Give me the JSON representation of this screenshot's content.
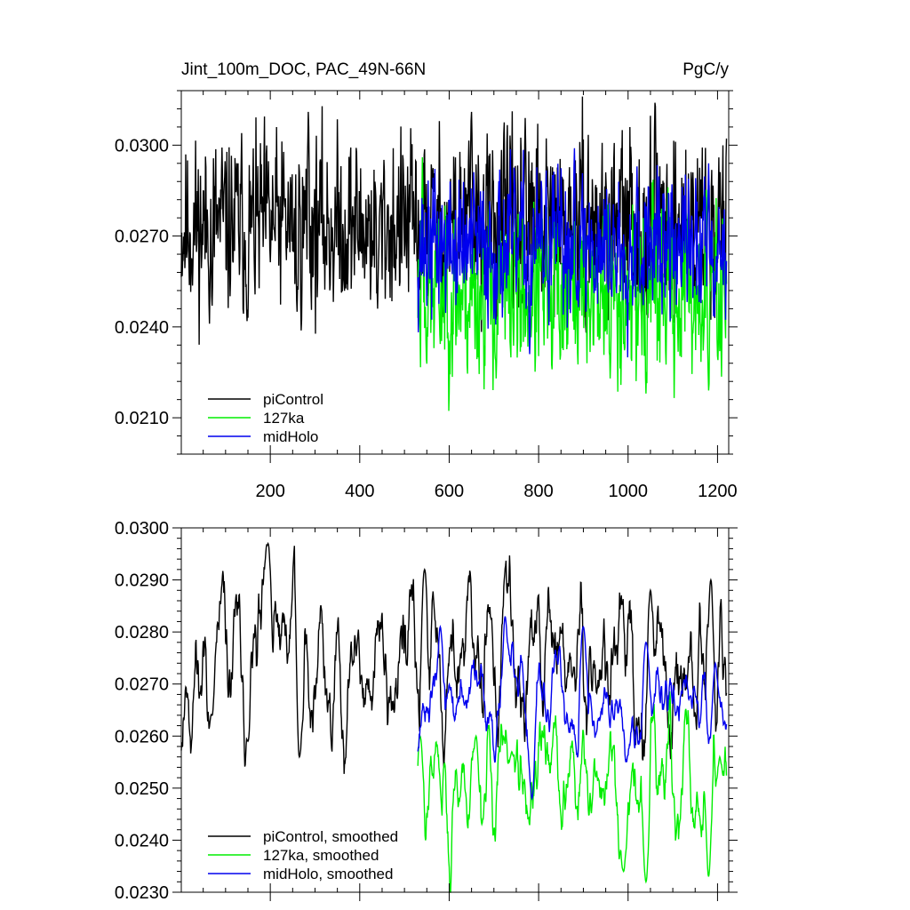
{
  "chart_data": [
    {
      "type": "line",
      "title": "Jint_100m_DOC, PAC_49N-66N",
      "units": "PgC/y",
      "xlim": [
        1,
        1225
      ],
      "ylim": [
        0.0198,
        0.0318
      ],
      "xticks": [
        200,
        400,
        600,
        800,
        1000,
        1200
      ],
      "xtick_labels": [
        "200",
        "400",
        "600",
        "800",
        "1000",
        "1200"
      ],
      "yticks": [
        0.021,
        0.024,
        0.027,
        0.03
      ],
      "ytick_labels": [
        "0.0210",
        "0.0240",
        "0.0270",
        "0.0300"
      ],
      "legend_position": "bottom-left",
      "series": [
        {
          "name": "piControl",
          "color": "#000000",
          "x_start": 1,
          "x_end": 1220,
          "y_mean": 0.0274,
          "y_amplitude": 0.0016,
          "smoothed": false,
          "seed": 11,
          "excursions": [
            [
              70,
              0.0247
            ],
            [
              150,
              0.0243
            ],
            [
              260,
              0.0245
            ],
            [
              285,
              0.0311
            ],
            [
              440,
              0.0246
            ],
            [
              650,
              0.0311
            ],
            [
              770,
              0.0309
            ],
            [
              1060,
              0.0314
            ]
          ]
        },
        {
          "name": "127ka",
          "color": "#00ee00",
          "x_start": 530,
          "x_end": 1220,
          "y_mean": 0.0251,
          "y_amplitude": 0.0015,
          "smoothed": false,
          "seed": 23,
          "excursions": [
            [
              540,
              0.0296
            ],
            [
              705,
              0.0223
            ],
            [
              830,
              0.0226
            ],
            [
              960,
              0.0223
            ],
            [
              1040,
              0.0218
            ],
            [
              1180,
              0.0219
            ]
          ]
        },
        {
          "name": "midHolo",
          "color": "#0000ee",
          "x_start": 530,
          "x_end": 1220,
          "y_mean": 0.0266,
          "y_amplitude": 0.0013,
          "smoothed": false,
          "seed": 37,
          "excursions": [
            [
              780,
              0.0231
            ],
            [
              880,
              0.0299
            ],
            [
              1020,
              0.0293
            ],
            [
              1180,
              0.0294
            ]
          ]
        }
      ]
    },
    {
      "type": "line",
      "xlim": [
        1,
        1225
      ],
      "ylim": [
        0.023,
        0.03
      ],
      "xticks": [
        200,
        400,
        600,
        800,
        1000,
        1200
      ],
      "yticks": [
        0.023,
        0.024,
        0.025,
        0.026,
        0.027,
        0.028,
        0.029,
        0.03
      ],
      "ytick_labels": [
        "0.0230",
        "0.0240",
        "0.0250",
        "0.0260",
        "0.0270",
        "0.0280",
        "0.0290",
        "0.0300"
      ],
      "legend_position": "bottom-left",
      "series": [
        {
          "name": "piControl, smoothed",
          "color": "#000000",
          "x_start": 1,
          "x_end": 1220,
          "y_mean": 0.0274,
          "y_amplitude": 0.0009,
          "smoothed": true,
          "seed": 11,
          "excursions": [
            [
              70,
              0.0264
            ],
            [
              150,
              0.0259
            ],
            [
              195,
              0.0297
            ],
            [
              255,
              0.0297
            ],
            [
              265,
              0.0256
            ],
            [
              545,
              0.0292
            ],
            [
              1050,
              0.0288
            ],
            [
              1185,
              0.029
            ]
          ]
        },
        {
          "name": "127ka, smoothed",
          "color": "#00ee00",
          "x_start": 530,
          "x_end": 1220,
          "y_mean": 0.0251,
          "y_amplitude": 0.0007,
          "smoothed": true,
          "seed": 23,
          "excursions": [
            [
              535,
              0.026
            ],
            [
              660,
              0.026
            ],
            [
              740,
              0.0257
            ],
            [
              990,
              0.0234
            ],
            [
              1040,
              0.0232
            ],
            [
              1180,
              0.0233
            ],
            [
              1205,
              0.0256
            ]
          ]
        },
        {
          "name": "midHolo, smoothed",
          "color": "#0000ee",
          "x_start": 530,
          "x_end": 1220,
          "y_mean": 0.0266,
          "y_amplitude": 0.0005,
          "smoothed": true,
          "seed": 37,
          "excursions": [
            [
              580,
              0.0281
            ],
            [
              725,
              0.0283
            ],
            [
              785,
              0.0248
            ],
            [
              900,
              0.0281
            ],
            [
              1040,
              0.0278
            ],
            [
              1195,
              0.0274
            ]
          ]
        }
      ]
    }
  ]
}
